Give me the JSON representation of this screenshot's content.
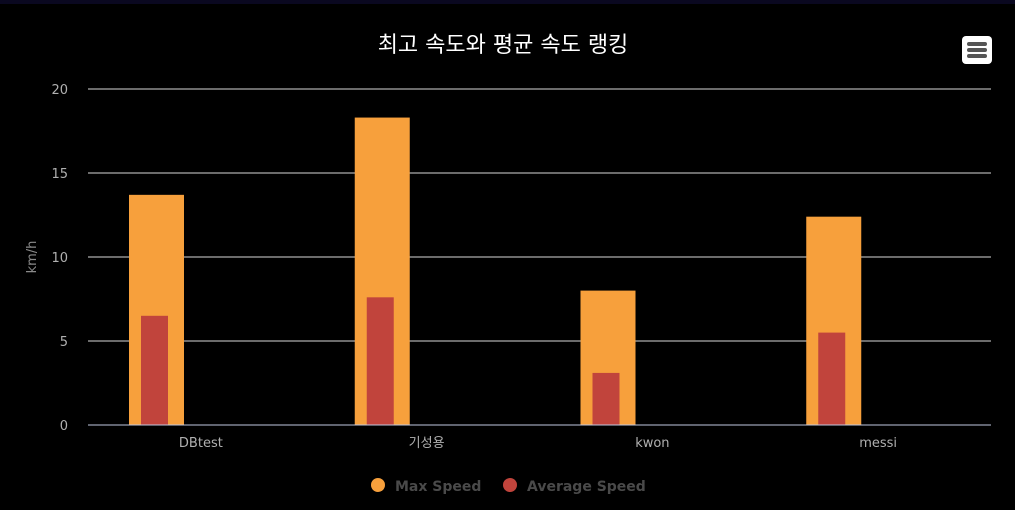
{
  "chart_data": {
    "type": "bar",
    "title": "최고 속도와 평균 속도 랭킹",
    "ylabel": "km/h",
    "xlabel": "",
    "ylim": [
      0,
      20
    ],
    "yticks": [
      0,
      5,
      10,
      15,
      20
    ],
    "categories": [
      "DBtest",
      "기성용",
      "kwon",
      "messi"
    ],
    "series": [
      {
        "name": "Max Speed",
        "color": "#f7a03c",
        "values": [
          13.7,
          18.3,
          8.0,
          12.4
        ]
      },
      {
        "name": "Average Speed",
        "color": "#c1443c",
        "values": [
          6.5,
          7.6,
          3.1,
          5.5
        ]
      }
    ],
    "grid": true,
    "legend": "bottom-center"
  },
  "menu": {
    "icon": "hamburger-menu-icon"
  }
}
